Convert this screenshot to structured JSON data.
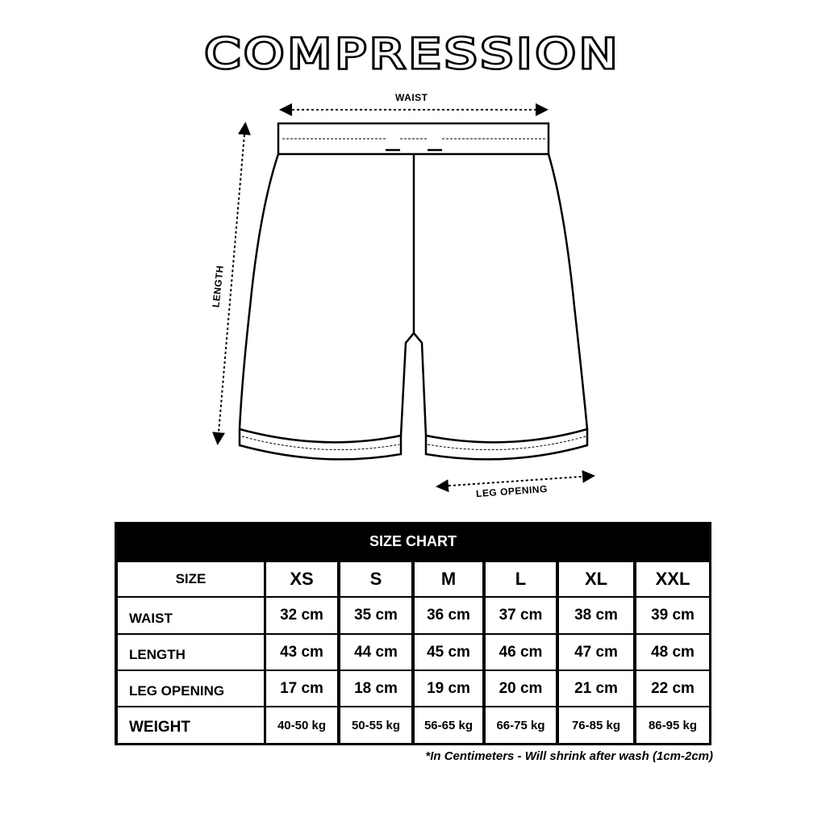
{
  "title": "COMPRESSION",
  "diagram": {
    "waist_label": "WAIST",
    "length_label": "LENGTH",
    "leg_opening_label": "LEG OPENING"
  },
  "size_chart": {
    "header": "SIZE CHART",
    "size_label": "SIZE",
    "sizes": [
      "XS",
      "S",
      "M",
      "L",
      "XL",
      "XXL"
    ],
    "rows": [
      {
        "label": "WAIST",
        "values": [
          "32 cm",
          "35 cm",
          "36 cm",
          "37 cm",
          "38 cm",
          "39 cm"
        ]
      },
      {
        "label": "LENGTH",
        "values": [
          "43 cm",
          "44 cm",
          "45 cm",
          "46 cm",
          "47 cm",
          "48 cm"
        ]
      },
      {
        "label": "LEG OPENING",
        "values": [
          "17 cm",
          "18 cm",
          "19 cm",
          "20 cm",
          "21 cm",
          "22 cm"
        ]
      },
      {
        "label": "WEIGHT",
        "values": [
          "40-50 kg",
          "50-55 kg",
          "56-65 kg",
          "66-75 kg",
          "76-85 kg",
          "86-95 kg"
        ]
      }
    ],
    "note": "*In Centimeters - Will shrink after wash (1cm-2cm)"
  }
}
